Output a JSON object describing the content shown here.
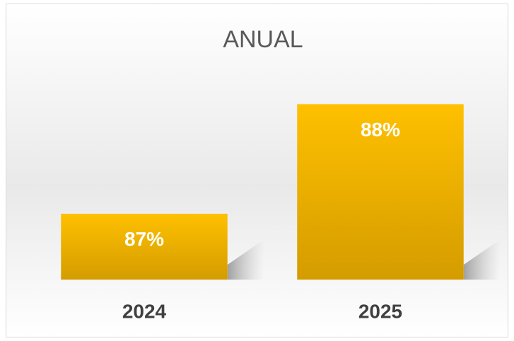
{
  "chart_data": {
    "type": "bar",
    "title": "ANUAL",
    "categories": [
      "2024",
      "2025"
    ],
    "values": [
      87,
      88
    ],
    "value_labels": [
      "87%",
      "88%"
    ],
    "color": "#ffc000",
    "ylim": [
      86.4,
      88.1
    ],
    "grid": false
  }
}
